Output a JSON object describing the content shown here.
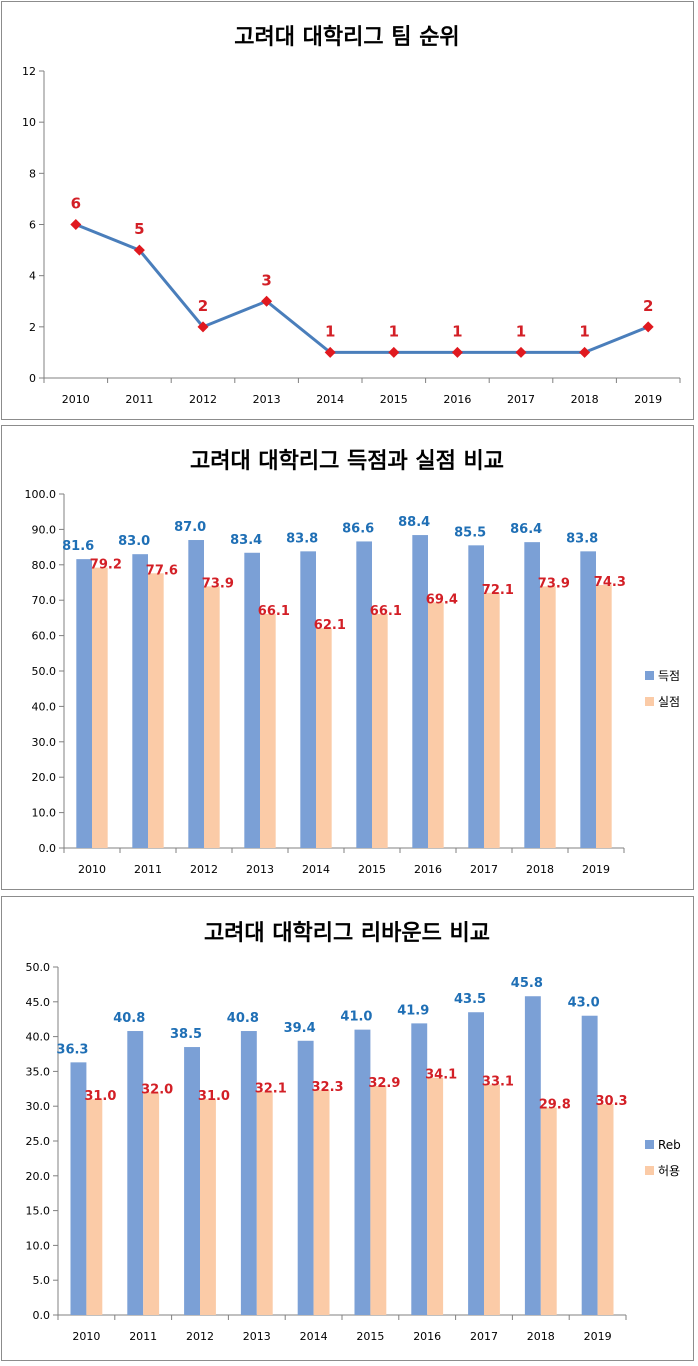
{
  "colors": {
    "series_a": "#7ba0d6",
    "series_b": "#fbcba7",
    "line": "#4a7ebb",
    "marker": "#e0191f",
    "label_a": "#1f6fb5",
    "label_b": "#d31f26",
    "axis": "#808080"
  },
  "chart_data": [
    {
      "type": "line",
      "title": "고려대 대학리그 팀 순위",
      "categories": [
        "2010",
        "2011",
        "2012",
        "2013",
        "2014",
        "2015",
        "2016",
        "2017",
        "2018",
        "2019"
      ],
      "series": [
        {
          "name": "순위",
          "values": [
            6,
            5,
            2,
            3,
            1,
            1,
            1,
            1,
            1,
            2
          ]
        }
      ],
      "data_labels": [
        "6",
        "5",
        "2",
        "3",
        "1",
        "1",
        "1",
        "1",
        "1",
        "2"
      ],
      "ylim": [
        0,
        12
      ],
      "yticks": [
        "0",
        "2",
        "4",
        "6",
        "8",
        "10",
        "12"
      ],
      "ytick_values": [
        0,
        2,
        4,
        6,
        8,
        10,
        12
      ],
      "legend": "none"
    },
    {
      "type": "bar",
      "title": "고려대 대학리그 득점과 실점 비교",
      "categories": [
        "2010",
        "2011",
        "2012",
        "2013",
        "2014",
        "2015",
        "2016",
        "2017",
        "2018",
        "2019"
      ],
      "series": [
        {
          "name": "득점",
          "values": [
            81.6,
            83.0,
            87.0,
            83.4,
            83.8,
            86.6,
            88.4,
            85.5,
            86.4,
            83.8
          ],
          "labels": [
            "81.6",
            "83.0",
            "87.0",
            "83.4",
            "83.8",
            "86.6",
            "88.4",
            "85.5",
            "86.4",
            "83.8"
          ]
        },
        {
          "name": "실점",
          "values": [
            79.2,
            77.6,
            73.9,
            66.1,
            62.1,
            66.1,
            69.4,
            72.1,
            73.9,
            74.3
          ],
          "labels": [
            "79.2",
            "77.6",
            "73.9",
            "66.1",
            "62.1",
            "66.1",
            "69.4",
            "72.1",
            "73.9",
            "74.3"
          ]
        }
      ],
      "ylim": [
        0,
        100
      ],
      "yticks": [
        "0.0",
        "10.0",
        "20.0",
        "30.0",
        "40.0",
        "50.0",
        "60.0",
        "70.0",
        "80.0",
        "90.0",
        "100.0"
      ],
      "ytick_values": [
        0,
        10,
        20,
        30,
        40,
        50,
        60,
        70,
        80,
        90,
        100
      ],
      "legend": "right"
    },
    {
      "type": "bar",
      "title": "고려대 대학리그 리바운드 비교",
      "categories": [
        "2010",
        "2011",
        "2012",
        "2013",
        "2014",
        "2015",
        "2016",
        "2017",
        "2018",
        "2019"
      ],
      "series": [
        {
          "name": "Reb",
          "values": [
            36.3,
            40.8,
            38.5,
            40.8,
            39.4,
            41.0,
            41.9,
            43.5,
            45.8,
            43.0
          ],
          "labels": [
            "36.3",
            "40.8",
            "38.5",
            "40.8",
            "39.4",
            "41.0",
            "41.9",
            "43.5",
            "45.8",
            "43.0"
          ]
        },
        {
          "name": "허용",
          "values": [
            31.0,
            32.0,
            31.0,
            32.1,
            32.3,
            32.9,
            34.1,
            33.1,
            29.8,
            30.3
          ],
          "labels": [
            "31.0",
            "32.0",
            "31.0",
            "32.1",
            "32.3",
            "32.9",
            "34.1",
            "33.1",
            "29.8",
            "30.3"
          ]
        }
      ],
      "ylim": [
        0,
        50
      ],
      "yticks": [
        "0.0",
        "5.0",
        "10.0",
        "15.0",
        "20.0",
        "25.0",
        "30.0",
        "35.0",
        "40.0",
        "45.0",
        "50.0"
      ],
      "ytick_values": [
        0,
        5,
        10,
        15,
        20,
        25,
        30,
        35,
        40,
        45,
        50
      ],
      "legend": "right"
    }
  ]
}
